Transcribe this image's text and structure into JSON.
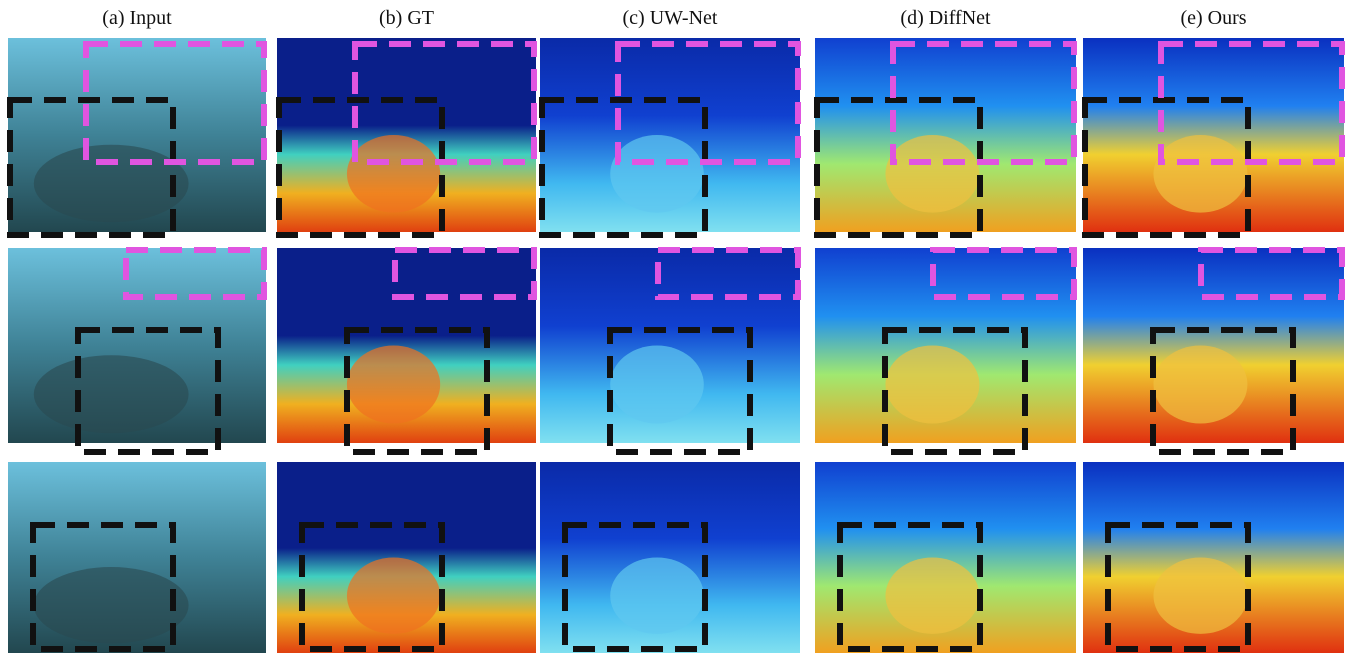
{
  "columns": [
    "(a) Input",
    "(b) GT",
    "(c) UW-Net",
    "(d) DiffNet",
    "(e) Ours"
  ]
}
